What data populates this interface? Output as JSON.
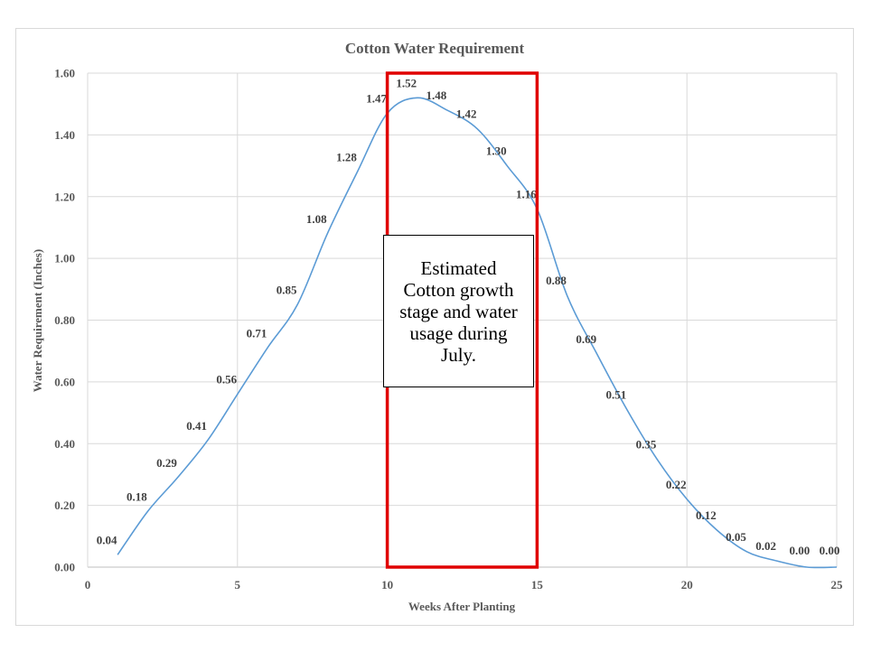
{
  "chart_data": {
    "type": "line",
    "title": "Cotton Water Requirement",
    "xlabel": "Weeks After Planting",
    "ylabel": "Water Requirement (Inches)",
    "xlim": [
      0,
      25
    ],
    "ylim": [
      0,
      1.6
    ],
    "x_ticks": [
      "0",
      "5",
      "10",
      "15",
      "20",
      "25"
    ],
    "y_ticks": [
      "0.00",
      "0.20",
      "0.40",
      "0.60",
      "0.80",
      "1.00",
      "1.20",
      "1.40",
      "1.60"
    ],
    "grid": true,
    "legend": "none",
    "series": [
      {
        "x": [
          1,
          2,
          3,
          4,
          5,
          6,
          7,
          8,
          9,
          10,
          11,
          12,
          13,
          14,
          15,
          16,
          17,
          18,
          19,
          20,
          21,
          22,
          23,
          24,
          25
        ],
        "values": [
          0.04,
          0.18,
          0.29,
          0.41,
          0.56,
          0.71,
          0.85,
          1.08,
          1.28,
          1.47,
          1.52,
          1.48,
          1.42,
          1.3,
          1.16,
          0.88,
          0.69,
          0.51,
          0.35,
          0.22,
          0.12,
          0.05,
          0.02,
          0.0,
          0.0
        ],
        "labels": [
          "0.04",
          "0.18",
          "0.29",
          "0.41",
          "0.56",
          "0.71",
          "0.85",
          "1.08",
          "1.28",
          "1.47",
          "1.52",
          "1.48",
          "1.42",
          "1.30",
          "1.16",
          "0.88",
          "0.69",
          "0.51",
          "0.35",
          "0.22",
          "0.12",
          "0.05",
          "0.02",
          "0.00",
          "0.00"
        ],
        "color": "#5b9bd5"
      }
    ],
    "highlight": {
      "x_range": [
        10,
        15
      ],
      "color": "#e00000"
    },
    "annotation": "Estimated Cotton growth stage and water usage during July."
  }
}
